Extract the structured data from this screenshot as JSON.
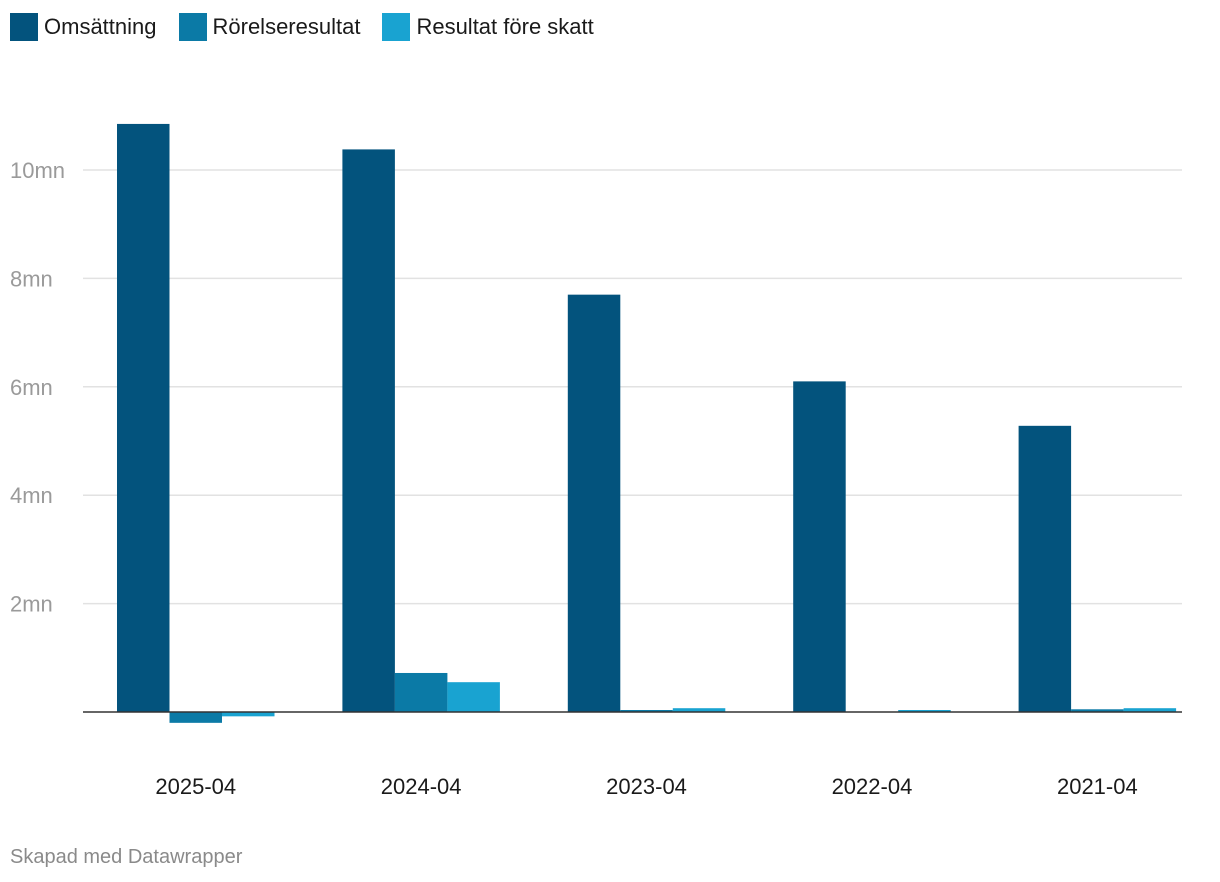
{
  "legend": [
    {
      "label": "Omsättning",
      "color": "#03537d"
    },
    {
      "label": "Rörelseresultat",
      "color": "#0b7aa6"
    },
    {
      "label": "Resultat före skatt",
      "color": "#19a3d1"
    }
  ],
  "footer": "Skapad med Datawrapper",
  "chart_data": {
    "type": "bar",
    "categories": [
      "2025-04",
      "2024-04",
      "2023-04",
      "2022-04",
      "2021-04"
    ],
    "series": [
      {
        "name": "Omsättning",
        "values": [
          10.85,
          10.38,
          7.7,
          6.1,
          5.28
        ]
      },
      {
        "name": "Rörelseresultat",
        "values": [
          -0.2,
          0.72,
          0.03,
          0.0,
          0.05
        ]
      },
      {
        "name": "Resultat före skatt",
        "values": [
          -0.08,
          0.55,
          0.07,
          0.03,
          0.07
        ]
      }
    ],
    "yticks": [
      {
        "value": 2,
        "label": "2mn"
      },
      {
        "value": 4,
        "label": "4mn"
      },
      {
        "value": 6,
        "label": "6mn"
      },
      {
        "value": 8,
        "label": "8mn"
      },
      {
        "value": 10,
        "label": "10mn"
      }
    ],
    "ylim": [
      -0.5,
      11
    ],
    "grid": true,
    "legend_position": "top-left"
  }
}
